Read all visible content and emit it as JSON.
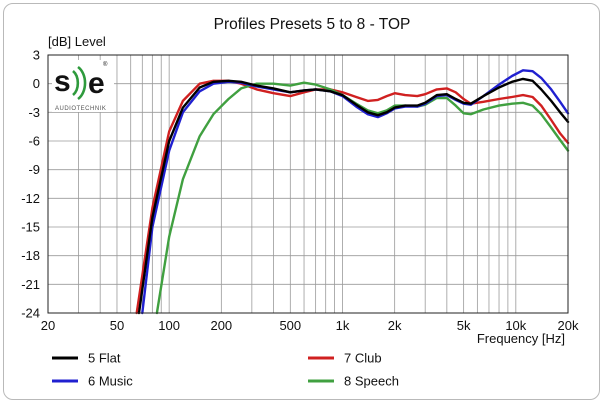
{
  "chart_data": {
    "type": "line",
    "title": "Profiles Presets 5 to 8 - TOP",
    "ylabel": "[dB]  Level",
    "xlabel": "Frequency [Hz]",
    "xscale": "log",
    "xlim": [
      20,
      20000
    ],
    "ylim": [
      -24,
      3
    ],
    "grid": true,
    "legend_position": "bottom",
    "y_ticks": [
      3,
      0,
      -3,
      -6,
      -9,
      -12,
      -15,
      -18,
      -21,
      -24
    ],
    "x_ticks": [
      {
        "value": 20,
        "label": "20"
      },
      {
        "value": 50,
        "label": "50"
      },
      {
        "value": 100,
        "label": "100"
      },
      {
        "value": 200,
        "label": "200"
      },
      {
        "value": 500,
        "label": "500"
      },
      {
        "value": 1000,
        "label": "1k"
      },
      {
        "value": 2000,
        "label": "2k"
      },
      {
        "value": 5000,
        "label": "5k"
      },
      {
        "value": 10000,
        "label": "10k"
      },
      {
        "value": 20000,
        "label": "20k"
      }
    ],
    "series": [
      {
        "name": "5 Flat",
        "color": "#000000",
        "points": [
          [
            67,
            -24
          ],
          [
            80,
            -14
          ],
          [
            100,
            -6
          ],
          [
            120,
            -2.5
          ],
          [
            150,
            -0.4
          ],
          [
            180,
            0.2
          ],
          [
            220,
            0.3
          ],
          [
            260,
            0.2
          ],
          [
            320,
            -0.2
          ],
          [
            400,
            -0.5
          ],
          [
            500,
            -0.9
          ],
          [
            600,
            -0.7
          ],
          [
            700,
            -0.6
          ],
          [
            850,
            -0.8
          ],
          [
            1000,
            -1.2
          ],
          [
            1200,
            -2.2
          ],
          [
            1400,
            -3.0
          ],
          [
            1600,
            -3.3
          ],
          [
            1800,
            -3.0
          ],
          [
            2000,
            -2.5
          ],
          [
            2300,
            -2.3
          ],
          [
            2700,
            -2.3
          ],
          [
            3000,
            -2.0
          ],
          [
            3500,
            -1.2
          ],
          [
            4000,
            -1.1
          ],
          [
            4500,
            -1.6
          ],
          [
            5000,
            -2.0
          ],
          [
            5500,
            -2.1
          ],
          [
            6500,
            -1.3
          ],
          [
            8000,
            -0.4
          ],
          [
            9500,
            0.2
          ],
          [
            11000,
            0.5
          ],
          [
            12500,
            0.3
          ],
          [
            14000,
            -0.6
          ],
          [
            16000,
            -1.8
          ],
          [
            18000,
            -3.0
          ],
          [
            20000,
            -4.0
          ]
        ]
      },
      {
        "name": "6 Music",
        "color": "#2020d0",
        "points": [
          [
            70,
            -24
          ],
          [
            80,
            -15
          ],
          [
            100,
            -7
          ],
          [
            120,
            -3
          ],
          [
            150,
            -0.8
          ],
          [
            180,
            0
          ],
          [
            220,
            0.2
          ],
          [
            260,
            0.1
          ],
          [
            320,
            -0.3
          ],
          [
            400,
            -0.6
          ],
          [
            500,
            -0.9
          ],
          [
            600,
            -0.7
          ],
          [
            700,
            -0.6
          ],
          [
            850,
            -0.8
          ],
          [
            1000,
            -1.3
          ],
          [
            1200,
            -2.4
          ],
          [
            1400,
            -3.2
          ],
          [
            1600,
            -3.5
          ],
          [
            1800,
            -3.1
          ],
          [
            2000,
            -2.6
          ],
          [
            2300,
            -2.4
          ],
          [
            2700,
            -2.4
          ],
          [
            3000,
            -2.1
          ],
          [
            3500,
            -1.3
          ],
          [
            4000,
            -1.2
          ],
          [
            4500,
            -1.7
          ],
          [
            5000,
            -2.1
          ],
          [
            5500,
            -2.2
          ],
          [
            6500,
            -1.3
          ],
          [
            8000,
            -0.1
          ],
          [
            9500,
            0.8
          ],
          [
            11000,
            1.4
          ],
          [
            12500,
            1.3
          ],
          [
            14000,
            0.6
          ],
          [
            16000,
            -0.6
          ],
          [
            18000,
            -1.9
          ],
          [
            20000,
            -3.1
          ]
        ]
      },
      {
        "name": "7 Club",
        "color": "#d02020",
        "points": [
          [
            65,
            -24
          ],
          [
            80,
            -13
          ],
          [
            100,
            -5
          ],
          [
            120,
            -1.8
          ],
          [
            150,
            0
          ],
          [
            180,
            0.3
          ],
          [
            220,
            0.3
          ],
          [
            260,
            0
          ],
          [
            320,
            -0.6
          ],
          [
            400,
            -1.0
          ],
          [
            500,
            -1.3
          ],
          [
            600,
            -0.9
          ],
          [
            700,
            -0.6
          ],
          [
            850,
            -0.6
          ],
          [
            1000,
            -0.9
          ],
          [
            1200,
            -1.4
          ],
          [
            1400,
            -1.8
          ],
          [
            1600,
            -1.7
          ],
          [
            1800,
            -1.3
          ],
          [
            2000,
            -1.0
          ],
          [
            2300,
            -1.2
          ],
          [
            2700,
            -1.3
          ],
          [
            3000,
            -1.1
          ],
          [
            3500,
            -0.6
          ],
          [
            4000,
            -0.5
          ],
          [
            4500,
            -0.9
          ],
          [
            5000,
            -1.6
          ],
          [
            5500,
            -2.1
          ],
          [
            6500,
            -1.9
          ],
          [
            8000,
            -1.6
          ],
          [
            9500,
            -1.4
          ],
          [
            11000,
            -1.2
          ],
          [
            12500,
            -1.4
          ],
          [
            14000,
            -2.3
          ],
          [
            16000,
            -3.8
          ],
          [
            18000,
            -5.2
          ],
          [
            20000,
            -6.2
          ]
        ]
      },
      {
        "name": "8 Speech",
        "color": "#40a040",
        "points": [
          [
            85,
            -24
          ],
          [
            100,
            -16
          ],
          [
            120,
            -10
          ],
          [
            150,
            -5.5
          ],
          [
            180,
            -3.2
          ],
          [
            220,
            -1.6
          ],
          [
            260,
            -0.5
          ],
          [
            320,
            0
          ],
          [
            400,
            0
          ],
          [
            500,
            -0.2
          ],
          [
            600,
            0.1
          ],
          [
            700,
            -0.1
          ],
          [
            850,
            -0.6
          ],
          [
            1000,
            -1.2
          ],
          [
            1200,
            -2.1
          ],
          [
            1400,
            -2.8
          ],
          [
            1600,
            -3.1
          ],
          [
            1800,
            -2.8
          ],
          [
            2000,
            -2.3
          ],
          [
            2300,
            -2.3
          ],
          [
            2700,
            -2.4
          ],
          [
            3000,
            -2.2
          ],
          [
            3500,
            -1.5
          ],
          [
            4000,
            -1.5
          ],
          [
            4500,
            -2.3
          ],
          [
            5000,
            -3.1
          ],
          [
            5500,
            -3.2
          ],
          [
            6500,
            -2.7
          ],
          [
            8000,
            -2.3
          ],
          [
            9500,
            -2.1
          ],
          [
            11000,
            -2.0
          ],
          [
            12500,
            -2.3
          ],
          [
            14000,
            -3.2
          ],
          [
            16000,
            -4.6
          ],
          [
            18000,
            -5.9
          ],
          [
            20000,
            -7.0
          ]
        ]
      }
    ]
  },
  "logo": {
    "text_left": "s",
    "text_right": "e",
    "mark": "®",
    "subtitle": "AUDIOTECHNIK"
  }
}
